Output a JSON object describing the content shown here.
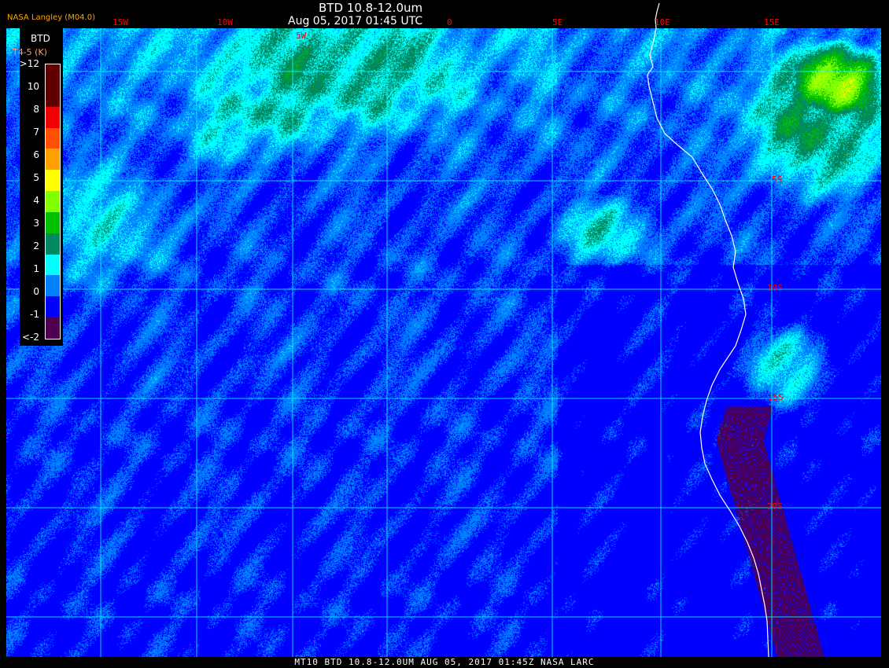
{
  "header": {
    "title": "BTD 10.8-12.0um",
    "datetime": "Aug 05, 2017 01:45 UTC",
    "credit": "NASA Langley (M04.0)"
  },
  "longitude_labels": [
    "15W",
    "10W",
    "5W",
    "0",
    "5E",
    "10E",
    "15E"
  ],
  "latitude_labels": [
    "5S",
    "10S",
    "15S",
    "20S"
  ],
  "legend": {
    "title": "BTD",
    "unit": "T4-5 (K)",
    "labels": [
      ">12",
      "10",
      "8",
      "7",
      "6",
      "5",
      "4",
      "3",
      "2",
      "1",
      "0",
      "-1",
      "<-2"
    ],
    "colors": [
      "#600000",
      "#600000",
      "#f00000",
      "#ff5000",
      "#ffa000",
      "#ffff00",
      "#80ff00",
      "#00c000",
      "#008860",
      "#00ffff",
      "#0080ff",
      "#0000ff",
      "#500050"
    ]
  },
  "footer": "MT10  BTD 10.8-12.0UM   AUG 05, 2017 01:45Z   NASA LARC",
  "colors": {
    "grid": "#00ffff",
    "coastline": "#ffffff",
    "grid_labels": "#ff0000"
  }
}
